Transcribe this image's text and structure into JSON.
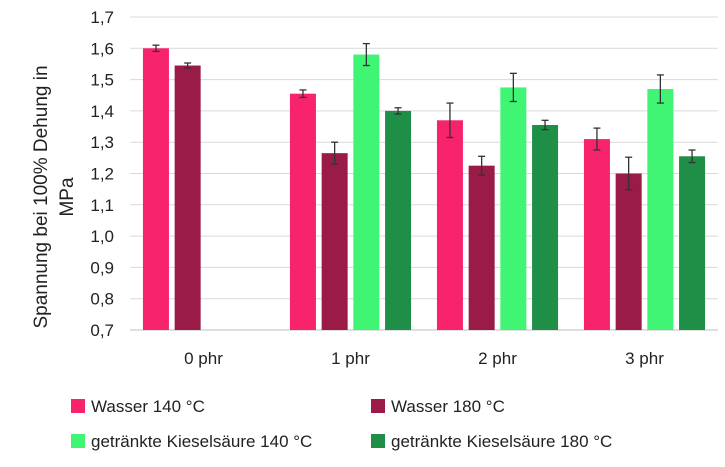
{
  "chart_data": {
    "type": "bar",
    "title": "",
    "xlabel": "",
    "ylabel_lines": [
      "Spannung bei 100% Dehung in",
      "MPa"
    ],
    "ylim": [
      0.7,
      1.7
    ],
    "yticks": [
      "0,7",
      "0,8",
      "0,9",
      "1,0",
      "1,1",
      "1,2",
      "1,3",
      "1,4",
      "1,5",
      "1,6",
      "1,7"
    ],
    "grid": true,
    "legend_position": "bottom",
    "categories": [
      "0 phr",
      "1 phr",
      "2 phr",
      "3 phr"
    ],
    "series": [
      {
        "name": "Wasser 140 °C",
        "color": "#f7246d",
        "values": [
          1.6,
          1.455,
          1.37,
          1.31
        ],
        "errors": [
          0.01,
          0.012,
          0.055,
          0.035
        ]
      },
      {
        "name": "Wasser 180 °C",
        "color": "#9a1a48",
        "values": [
          1.545,
          1.265,
          1.225,
          1.2
        ],
        "errors": [
          0.008,
          0.035,
          0.03,
          0.052
        ]
      },
      {
        "name": "getränkte Kieselsäure 140 °C",
        "color": "#3ff573",
        "values": [
          null,
          1.58,
          1.475,
          1.47
        ],
        "errors": [
          null,
          0.035,
          0.045,
          0.045
        ]
      },
      {
        "name": "getränkte Kieselsäure 180 °C",
        "color": "#1f8f47",
        "values": [
          null,
          1.4,
          1.355,
          1.255
        ],
        "errors": [
          null,
          0.01,
          0.015,
          0.02
        ]
      }
    ]
  }
}
